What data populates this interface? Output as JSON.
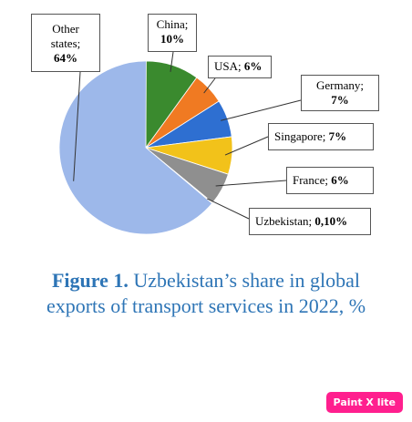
{
  "chart_data": {
    "type": "pie",
    "title": "",
    "slices": [
      {
        "label": "China",
        "value_text": "10%",
        "value": 10,
        "color": "#3a8a2e"
      },
      {
        "label": "USA",
        "value_text": "6%",
        "value": 6,
        "color": "#f07a22"
      },
      {
        "label": "Germany",
        "value_text": "7%",
        "value": 7,
        "color": "#2e6fd1"
      },
      {
        "label": "Singapore",
        "value_text": "7%",
        "value": 7,
        "color": "#f2c21a"
      },
      {
        "label": "France",
        "value_text": "6%",
        "value": 6,
        "color": "#8f8f8f"
      },
      {
        "label": "Uzbekistan",
        "value_text": "0,10%",
        "value": 0.1,
        "color": "#c9a27a"
      },
      {
        "label": "Other states",
        "value_text": "64%",
        "value": 64,
        "color": "#9db8ea"
      }
    ]
  },
  "caption": {
    "figure_label": "Figure 1.",
    "line1_rest": " Uzbekistan’s share in global",
    "line2": "exports of transport services in 2022, %"
  },
  "callouts": {
    "other_line1": "Other",
    "other_line2": "states;",
    "china_line1": "China;",
    "usa_name": "USA; ",
    "germany_line1": "Germany;",
    "singapore_name": "Singapore; ",
    "france_name": "France; ",
    "uzbekistan_name": "Uzbekistan; "
  },
  "badge": "Paint X lite"
}
